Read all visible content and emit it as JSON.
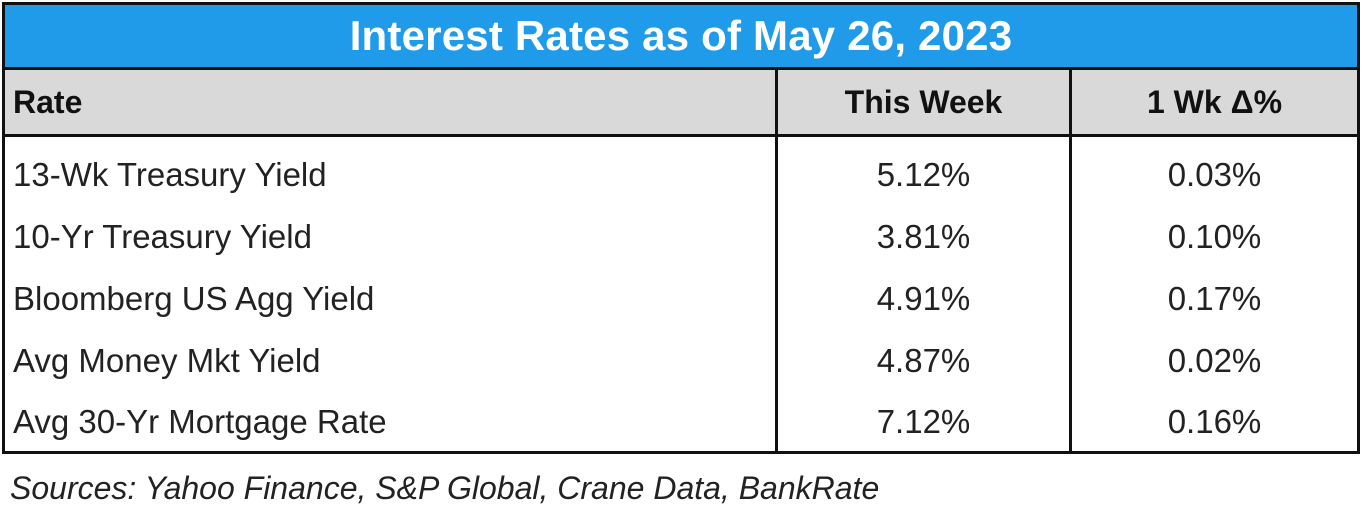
{
  "table": {
    "title": "Interest Rates as of May 26, 2023",
    "headers": {
      "rate": "Rate",
      "this_week": "This Week",
      "delta": "1 Wk Δ%"
    },
    "rows": [
      {
        "rate": "13-Wk Treasury Yield",
        "this_week": "5.12%",
        "delta": "0.03%"
      },
      {
        "rate": "10-Yr Treasury Yield",
        "this_week": "3.81%",
        "delta": "0.10%"
      },
      {
        "rate": "Bloomberg US Agg Yield",
        "this_week": "4.91%",
        "delta": "0.17%"
      },
      {
        "rate": "Avg Money Mkt Yield",
        "this_week": "4.87%",
        "delta": "0.02%"
      },
      {
        "rate": "Avg 30-Yr Mortgage Rate",
        "this_week": "7.12%",
        "delta": "0.16%"
      }
    ]
  },
  "source": "Sources: Yahoo Finance, S&P Global, Crane Data, BankRate",
  "colors": {
    "title_bar": "#1f9bea",
    "header_bg": "#d9d9d9",
    "border": "#111111"
  }
}
